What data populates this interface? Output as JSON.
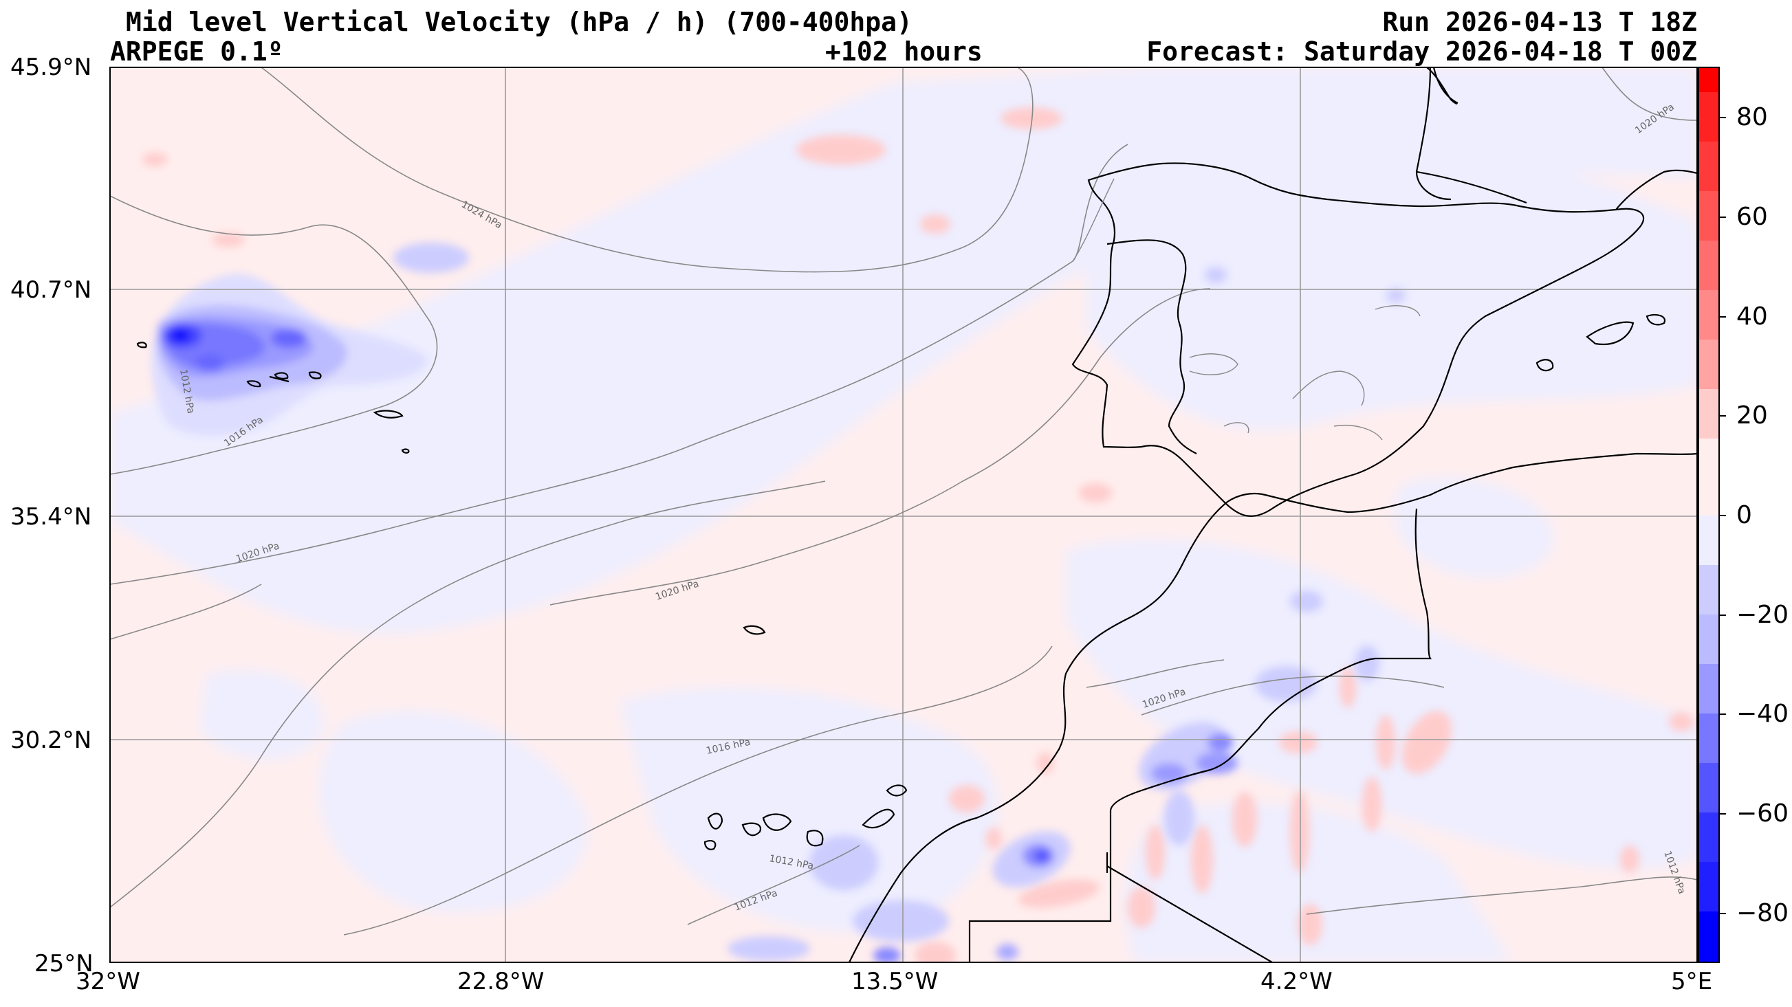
{
  "header": {
    "title": "Mid level Vertical Velocity (hPa / h)  (700-400hpa)",
    "model": "ARPEGE 0.1º",
    "lead": "+102 hours",
    "run": "Run 2026-04-13 T 18Z",
    "forecast": "Forecast: Saturday 2026-04-18 T 00Z"
  },
  "axes": {
    "lat_labels": [
      "45.9°N",
      "40.7°N",
      "35.4°N",
      "30.2°N",
      "25°N"
    ],
    "lon_labels": [
      "32°W",
      "22.8°W",
      "13.5°W",
      "4.2°W",
      "5°E"
    ]
  },
  "colorbar": {
    "range": [
      -90,
      90
    ],
    "ticks": [
      "80",
      "60",
      "40",
      "20",
      "0",
      "−20",
      "−40",
      "−60",
      "−80"
    ],
    "colors": {
      "strong_ascent": "#0000ff",
      "weak_ascent": "#eeeeff",
      "weak_descent": "#ffeeee",
      "strong_descent": "#ff0000"
    }
  },
  "isobar_labels": [
    "1024 hPa",
    "1020 hPa",
    "1020 hPa",
    "1020 hPa",
    "1016 hPa",
    "1016 hPa",
    "1012 hPa",
    "1012 hPa",
    "1012 hPa",
    "1012 hPa",
    "1020 hPa"
  ]
}
